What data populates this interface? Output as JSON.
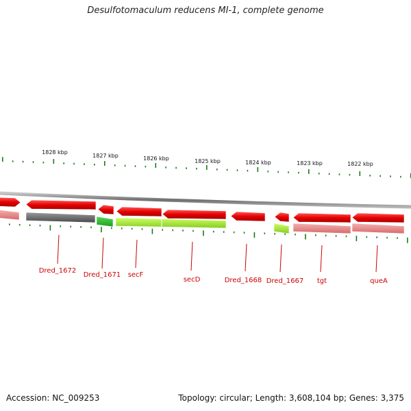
{
  "title": "Desulfotomaculum reducens MI-1, complete genome",
  "accession_text": "Accession: NC_009253",
  "summary_text": "Topology: circular; Length: 3,608,104 bp; Genes: 3,375",
  "colors": {
    "backbone": "#8a8a8a",
    "tick": "#1a7a1a",
    "forward_cds": "#e60000",
    "cog_gray": "#707070",
    "cog_green": "#33bb33",
    "cog_yellowgreen": "#aaee33",
    "cog_pink": "#e88080",
    "gene_label": "#cc0000"
  },
  "kbp_markers": [
    "1828 kbp",
    "1827 kbp",
    "1826 kbp",
    "1825 kbp",
    "1824 kbp",
    "1823 kbp",
    "1822 kbp"
  ],
  "genes": [
    {
      "label": "",
      "outer": "forward_cds",
      "inner": "cog_pink"
    },
    {
      "label": "Dred_1672",
      "outer": "forward_cds",
      "inner": "cog_gray"
    },
    {
      "label": "Dred_1671",
      "outer": "forward_cds",
      "inner": "cog_green"
    },
    {
      "label": "secF",
      "outer": "forward_cds",
      "inner": "cog_yellowgreen"
    },
    {
      "label": "secD",
      "outer": "forward_cds",
      "inner": "cog_yellowgreen"
    },
    {
      "label": "Dred_1668",
      "outer": "forward_cds",
      "inner": ""
    },
    {
      "label": "Dred_1667",
      "outer": "forward_cds",
      "inner": "cog_yellowgreen"
    },
    {
      "label": "tgt",
      "outer": "forward_cds",
      "inner": "cog_pink"
    },
    {
      "label": "queA",
      "outer": "forward_cds",
      "inner": "cog_pink"
    }
  ]
}
